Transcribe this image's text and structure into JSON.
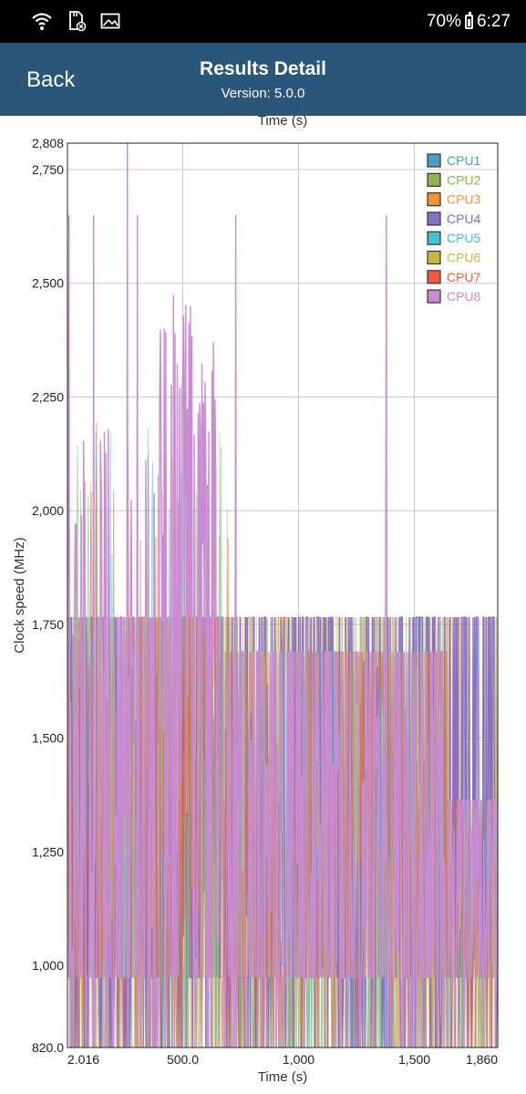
{
  "status_bar": {
    "battery_percent": "70%",
    "time": "6:27",
    "icons": [
      "wifi-icon",
      "sd-card-icon",
      "image-icon",
      "battery-icon"
    ]
  },
  "header": {
    "back_label": "Back",
    "title": "Results Detail",
    "subtitle": "Version: 5.0.0"
  },
  "chart_data": {
    "type": "line",
    "xlabel": "Time (s)",
    "xlabel_top": "Time (s)",
    "ylabel": "Clock speed (MHz)",
    "xlim": [
      2.016,
      1860
    ],
    "ylim": [
      820.0,
      2808
    ],
    "x_ticks": [
      {
        "value": 2.016,
        "label": "2.016"
      },
      {
        "value": 500,
        "label": "500.0"
      },
      {
        "value": 1000,
        "label": "1,000"
      },
      {
        "value": 1500,
        "label": "1,500"
      },
      {
        "value": 1860,
        "label": "1,860"
      }
    ],
    "y_ticks": [
      {
        "value": 820,
        "label": "820.0"
      },
      {
        "value": 1000,
        "label": "1,000"
      },
      {
        "value": 1250,
        "label": "1,250"
      },
      {
        "value": 1500,
        "label": "1,500"
      },
      {
        "value": 1750,
        "label": "1,750"
      },
      {
        "value": 2000,
        "label": "2,000"
      },
      {
        "value": 2250,
        "label": "2,250"
      },
      {
        "value": 2500,
        "label": "2,500"
      },
      {
        "value": 2750,
        "label": "2,750"
      },
      {
        "value": 2808,
        "label": "2,808"
      }
    ],
    "grid": true,
    "legend_position": "top-right",
    "series": [
      {
        "name": "CPU1",
        "color": "#4a9ec2"
      },
      {
        "name": "CPU2",
        "color": "#8db34a"
      },
      {
        "name": "CPU3",
        "color": "#ef9433"
      },
      {
        "name": "CPU4",
        "color": "#8a6dc4"
      },
      {
        "name": "CPU5",
        "color": "#3cc6cc"
      },
      {
        "name": "CPU6",
        "color": "#c6b83a"
      },
      {
        "name": "CPU7",
        "color": "#ef5a3a"
      },
      {
        "name": "CPU8",
        "color": "#c98bd4"
      }
    ],
    "segments": [
      {
        "x_range": [
          2.016,
          680
        ],
        "big_cluster_range": [
          974,
          1766
        ],
        "big_cluster_mean": 1560,
        "big_cluster_spikes_peak": 2808
      },
      {
        "x_range": [
          680,
          1640
        ],
        "big_cluster_range": [
          974,
          1690
        ],
        "big_cluster_mean": 1380,
        "big_cluster_spikes_peak": 2650
      },
      {
        "x_range": [
          1640,
          1860
        ],
        "big_cluster_range": [
          974,
          1364
        ],
        "big_cluster_mean": 1180,
        "big_cluster_spikes_peak": 1760
      }
    ],
    "little_cluster_mhz": {
      "min": 820,
      "max": 1766,
      "floor": 974
    },
    "notable_spikes": [
      {
        "x": 10,
        "y": 2650
      },
      {
        "x": 115,
        "y": 2650
      },
      {
        "x": 260,
        "y": 2808
      },
      {
        "x": 305,
        "y": 2650
      },
      {
        "x": 420,
        "y": 2400
      },
      {
        "x": 460,
        "y": 2475
      },
      {
        "x": 500,
        "y": 2300
      },
      {
        "x": 730,
        "y": 2650
      },
      {
        "x": 1380,
        "y": 2650
      }
    ]
  }
}
